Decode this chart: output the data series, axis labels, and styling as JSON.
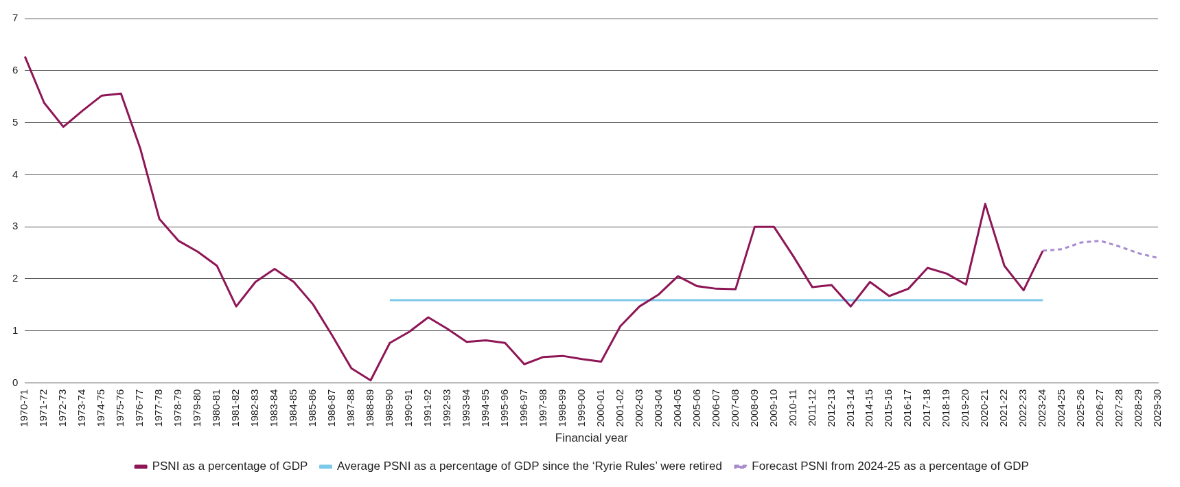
{
  "chart_data": {
    "type": "line",
    "xlabel": "Financial year",
    "categories": [
      "1970-71",
      "1971-72",
      "1972-73",
      "1973-74",
      "1974-75",
      "1975-76",
      "1976-77",
      "1977-78",
      "1978-79",
      "1979-80",
      "1980-81",
      "1981-82",
      "1982-83",
      "1983-84",
      "1984-85",
      "1985-86",
      "1986-87",
      "1987-88",
      "1988-89",
      "1989-90",
      "1990-91",
      "1991-92",
      "1992-93",
      "1993-94",
      "1994-95",
      "1995-96",
      "1996-97",
      "1997-98",
      "1998-99",
      "1999-00",
      "2000-01",
      "2001-02",
      "2002-03",
      "2003-04",
      "2004-05",
      "2005-06",
      "2006-07",
      "2007-08",
      "2008-09",
      "2009-10",
      "2010-11",
      "2011-12",
      "2012-13",
      "2013-14",
      "2014-15",
      "2015-16",
      "2016-17",
      "2017-18",
      "2018-19",
      "2019-20",
      "2020-21",
      "2021-22",
      "2022-23",
      "2023-24",
      "2024-25",
      "2025-26",
      "2026-27",
      "2027-28",
      "2028-29",
      "2029-30"
    ],
    "series": [
      {
        "name": "PSNI as a percentage of GDP",
        "color": "#8e1656",
        "line_style": "solid",
        "values": [
          6.27,
          5.38,
          4.92,
          5.23,
          5.52,
          5.56,
          4.51,
          3.15,
          2.73,
          2.52,
          2.25,
          1.47,
          1.94,
          2.19,
          1.94,
          1.51,
          0.91,
          0.28,
          0.05,
          0.77,
          0.98,
          1.26,
          1.04,
          0.79,
          0.82,
          0.77,
          0.36,
          0.5,
          0.52,
          0.46,
          0.41,
          1.09,
          1.47,
          1.7,
          2.05,
          1.86,
          1.81,
          1.8,
          3.0,
          3.0,
          2.44,
          1.84,
          1.88,
          1.47,
          1.94,
          1.67,
          1.81,
          2.21,
          2.1,
          1.89,
          3.44,
          2.25,
          1.78,
          2.54,
          null,
          null,
          null,
          null,
          null,
          null
        ]
      },
      {
        "name": "Average PSNI as a percentage of GDP since the ‘Ryrie Rules’ were retired",
        "color": "#7ec8ea",
        "line_style": "solid",
        "values": [
          null,
          null,
          null,
          null,
          null,
          null,
          null,
          null,
          null,
          null,
          null,
          null,
          null,
          null,
          null,
          null,
          null,
          null,
          null,
          1.59,
          1.59,
          1.59,
          1.59,
          1.59,
          1.59,
          1.59,
          1.59,
          1.59,
          1.59,
          1.59,
          1.59,
          1.59,
          1.59,
          1.59,
          1.59,
          1.59,
          1.59,
          1.59,
          1.59,
          1.59,
          1.59,
          1.59,
          1.59,
          1.59,
          1.59,
          1.59,
          1.59,
          1.59,
          1.59,
          1.59,
          1.59,
          1.59,
          1.59,
          1.59,
          null,
          null,
          null,
          null,
          null,
          null
        ]
      },
      {
        "name": "Forecast PSNI from 2024-25 as a percentage of GDP",
        "color": "#a98ccf",
        "line_style": "dashed",
        "values": [
          null,
          null,
          null,
          null,
          null,
          null,
          null,
          null,
          null,
          null,
          null,
          null,
          null,
          null,
          null,
          null,
          null,
          null,
          null,
          null,
          null,
          null,
          null,
          null,
          null,
          null,
          null,
          null,
          null,
          null,
          null,
          null,
          null,
          null,
          null,
          null,
          null,
          null,
          null,
          null,
          null,
          null,
          null,
          null,
          null,
          null,
          null,
          null,
          null,
          null,
          null,
          null,
          null,
          2.54,
          2.57,
          2.7,
          2.73,
          2.62,
          2.49,
          2.4
        ]
      }
    ],
    "ylim": [
      0,
      7
    ],
    "yticks": [
      0,
      1,
      2,
      3,
      4,
      5,
      6,
      7
    ],
    "grid": "y",
    "legend": "bottom",
    "marker": "none"
  }
}
